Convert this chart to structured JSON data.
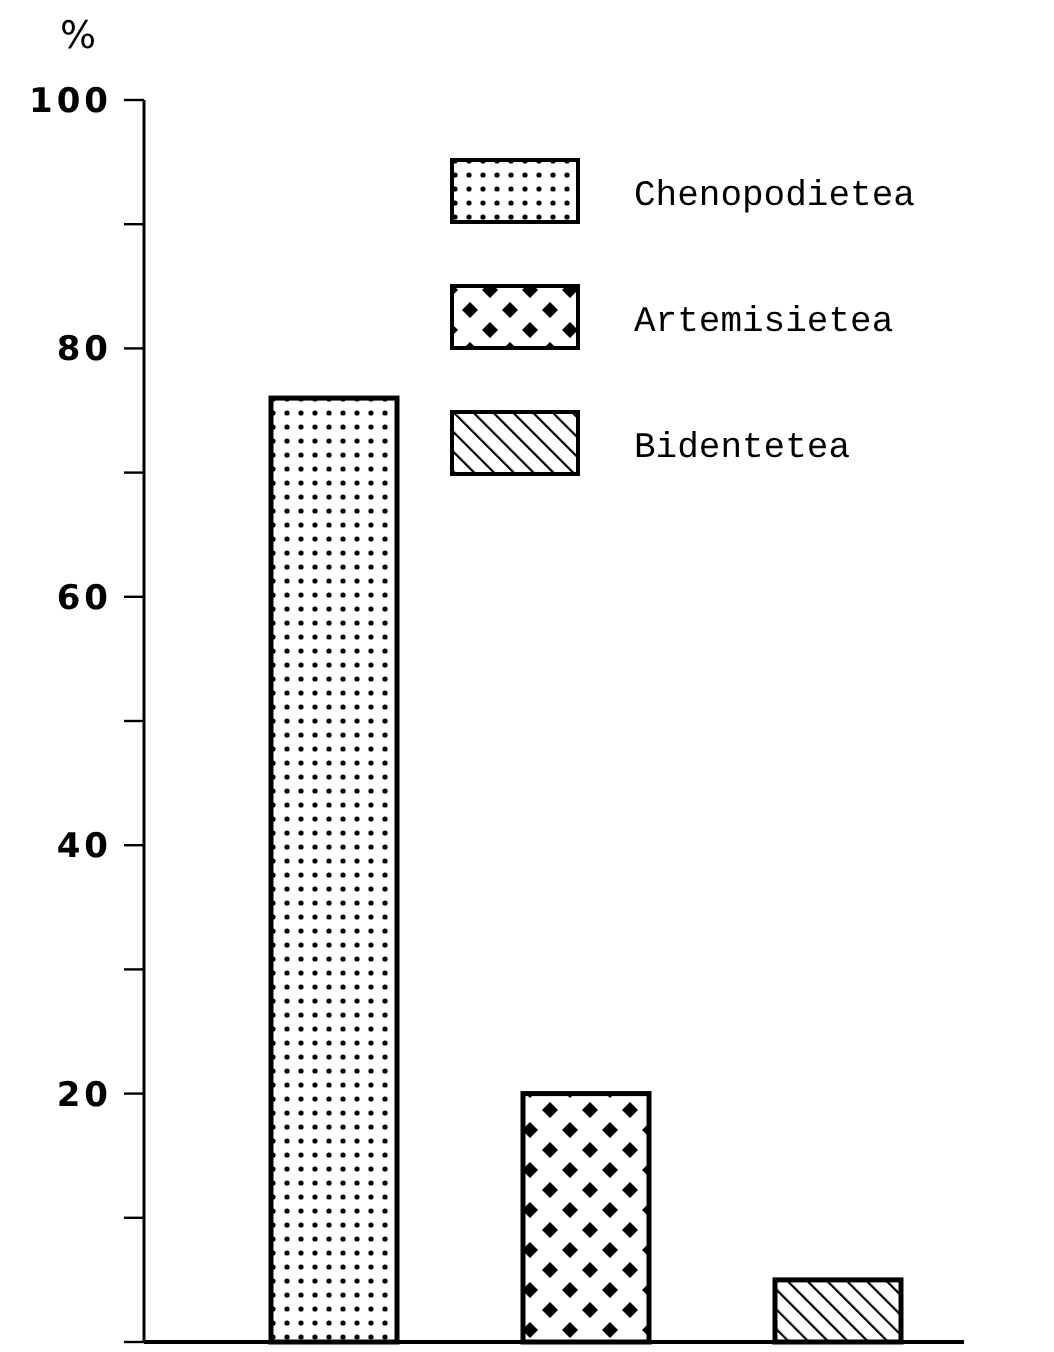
{
  "chart_data": {
    "type": "bar",
    "ylabel": "%",
    "categories": [
      null,
      null,
      null
    ],
    "series": [
      {
        "name": "Chenopodietea",
        "color": "#000000",
        "values": [
          76,
          null,
          null
        ]
      },
      {
        "name": "Artemisietea",
        "color": "#000000",
        "values": [
          null,
          20,
          null
        ]
      },
      {
        "name": "Bidentetea",
        "color": "#000000",
        "values": [
          null,
          null,
          5
        ]
      }
    ],
    "ylim": [
      0,
      100
    ],
    "yticks": [
      {
        "value": 0,
        "label": null
      },
      {
        "value": 10,
        "label": null
      },
      20,
      {
        "value": 30,
        "label": null
      },
      40,
      {
        "value": 50,
        "label": null
      },
      60,
      {
        "value": 70,
        "label": null
      },
      80,
      {
        "value": 90,
        "label": null
      },
      100
    ],
    "grid": false,
    "legend": "top right"
  }
}
